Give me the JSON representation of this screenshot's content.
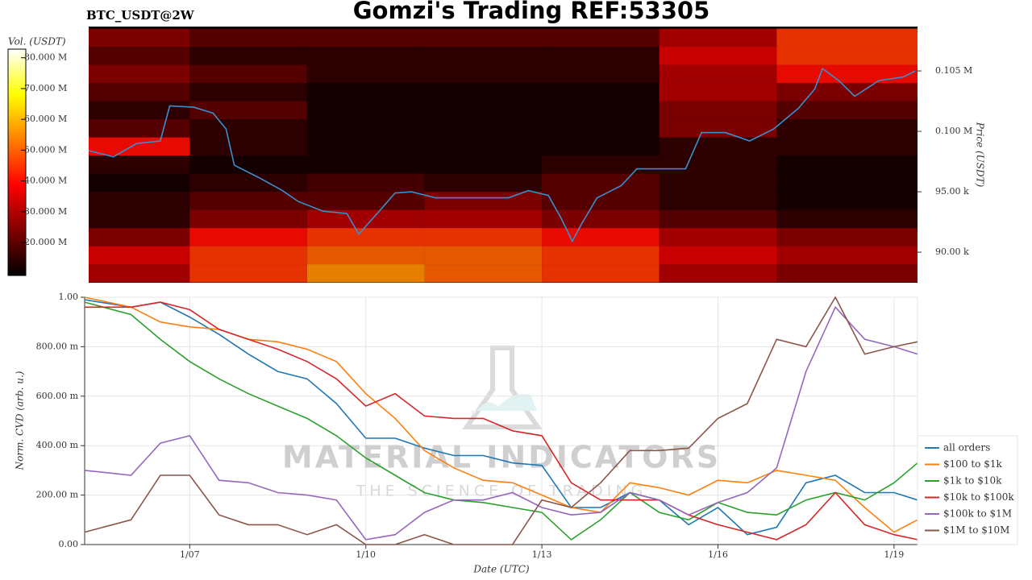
{
  "chart_data": [
    {
      "type": "heatmap",
      "title": "Gomzi's Trading REF:53305",
      "subtitle": "BTC_USDT@2W",
      "ylabel": "Price (USDT)",
      "clabel": "Vol. (USDT)",
      "xlim": [
        5.28,
        19.4
      ],
      "ylim": [
        87470,
        108670
      ],
      "yticks": [
        {
          "value": 90000,
          "label": "90.00 k"
        },
        {
          "value": 95000,
          "label": "95.00 k"
        },
        {
          "value": 100000,
          "label": "0.100 M"
        },
        {
          "value": 105000,
          "label": "0.105 M"
        }
      ],
      "clim": [
        9300000,
        82800000
      ],
      "cticks": [
        {
          "value": 20000000,
          "label": "20.000 M"
        },
        {
          "value": 30000000,
          "label": "30.000 M"
        },
        {
          "value": 40000000,
          "label": "40.000 M"
        },
        {
          "value": 50000000,
          "label": "50.000 M"
        },
        {
          "value": 60000000,
          "label": "60.000 M"
        },
        {
          "value": 70000000,
          "label": "70.000 M"
        },
        {
          "value": 80000000,
          "label": "80.000 M"
        }
      ],
      "xbins": [
        5.28,
        7,
        9,
        11,
        13,
        15,
        17,
        19.4
      ],
      "ybins": [
        87500,
        89000,
        90500,
        92000,
        93500,
        95000,
        96500,
        98000,
        99500,
        101000,
        102500,
        104000,
        105500,
        107000,
        108500
      ],
      "z": [
        [
          30000000,
          45000000,
          55000000,
          50000000,
          45000000,
          30000000,
          25000000
        ],
        [
          35000000,
          45000000,
          50000000,
          50000000,
          45000000,
          35000000,
          30000000
        ],
        [
          25000000,
          40000000,
          45000000,
          45000000,
          40000000,
          30000000,
          25000000
        ],
        [
          15000000,
          25000000,
          30000000,
          30000000,
          25000000,
          20000000,
          15000000
        ],
        [
          15000000,
          20000000,
          20000000,
          25000000,
          20000000,
          15000000,
          12000000
        ],
        [
          12000000,
          15000000,
          18000000,
          15000000,
          20000000,
          15000000,
          12000000
        ],
        [
          15000000,
          12000000,
          12000000,
          12000000,
          15000000,
          15000000,
          12000000
        ],
        [
          40000000,
          15000000,
          12000000,
          12000000,
          12000000,
          15000000,
          15000000
        ],
        [
          20000000,
          15000000,
          12000000,
          12000000,
          12000000,
          25000000,
          15000000
        ],
        [
          15000000,
          20000000,
          12000000,
          12000000,
          12000000,
          25000000,
          20000000
        ],
        [
          20000000,
          15000000,
          12000000,
          12000000,
          12000000,
          30000000,
          25000000
        ],
        [
          25000000,
          20000000,
          15000000,
          15000000,
          15000000,
          30000000,
          40000000
        ],
        [
          20000000,
          15000000,
          15000000,
          15000000,
          15000000,
          35000000,
          45000000
        ],
        [
          25000000,
          20000000,
          20000000,
          20000000,
          20000000,
          30000000,
          45000000
        ]
      ],
      "series": [
        {
          "color": "#3a8fd0",
          "x": [
            5.28,
            5.7,
            6.1,
            6.5,
            6.66,
            7.07,
            7.4,
            7.62,
            7.76,
            8.17,
            8.58,
            8.85,
            9.27,
            9.68,
            9.88,
            10.23,
            10.5,
            10.78,
            11.19,
            11.6,
            12.01,
            12.43,
            12.77,
            13.11,
            13.32,
            13.52,
            13.66,
            13.94,
            14.35,
            14.62,
            15.04,
            15.45,
            15.72,
            16.13,
            16.54,
            16.95,
            17.37,
            17.65,
            17.78,
            18.06,
            18.33,
            18.74,
            19.16,
            19.36
          ],
          "values": [
            98400,
            97900,
            99000,
            99200,
            102100,
            102000,
            101500,
            100200,
            97200,
            96200,
            95100,
            94200,
            93400,
            93200,
            91500,
            93400,
            94900,
            95000,
            94500,
            94500,
            94500,
            94500,
            95100,
            94700,
            92900,
            90900,
            92200,
            94500,
            95500,
            96900,
            96900,
            96900,
            99900,
            99900,
            99200,
            100200,
            101900,
            103500,
            105200,
            104200,
            102900,
            104200,
            104500,
            105000
          ]
        }
      ]
    },
    {
      "type": "line",
      "xlabel": "Date (UTC)",
      "ylabel": "Norm. CVD (arb. u.)",
      "watermark": [
        "MATERIAL INDICATORS",
        "THE SCIENCE OF TRADING"
      ],
      "grid": true,
      "legend": "lower right",
      "xlim": [
        5.21,
        19.4
      ],
      "ylim": [
        0,
        1
      ],
      "xticks": [
        {
          "value": 7,
          "label": "1/07"
        },
        {
          "value": 10,
          "label": "1/10"
        },
        {
          "value": 13,
          "label": "1/13"
        },
        {
          "value": 16,
          "label": "1/16"
        },
        {
          "value": 19,
          "label": "1/19"
        }
      ],
      "yticks": [
        {
          "value": 0,
          "label": "0.00"
        },
        {
          "value": 0.2,
          "label": "200.00 m"
        },
        {
          "value": 0.4,
          "label": "400.00 m"
        },
        {
          "value": 0.6,
          "label": "600.00 m"
        },
        {
          "value": 0.8,
          "label": "800.00 m"
        },
        {
          "value": 1,
          "label": "1.00"
        }
      ],
      "x": [
        5.21,
        6,
        6.5,
        7,
        7.5,
        8,
        8.5,
        9,
        9.5,
        10,
        10.5,
        11,
        11.5,
        12,
        12.5,
        13,
        13.5,
        14,
        14.5,
        15,
        15.5,
        16,
        16.5,
        17,
        17.5,
        18,
        18.5,
        19,
        19.4
      ],
      "series": [
        {
          "name": "all orders",
          "color": "#1f77b4",
          "values": [
            0.99,
            0.96,
            0.98,
            0.92,
            0.85,
            0.77,
            0.7,
            0.67,
            0.57,
            0.43,
            0.43,
            0.39,
            0.36,
            0.36,
            0.33,
            0.32,
            0.15,
            0.15,
            0.21,
            0.18,
            0.08,
            0.15,
            0.04,
            0.07,
            0.25,
            0.28,
            0.21,
            0.21,
            0.18
          ]
        },
        {
          "name": "$100 to $1k",
          "color": "#ff7f0e",
          "values": [
            1.0,
            0.96,
            0.9,
            0.88,
            0.87,
            0.83,
            0.82,
            0.79,
            0.74,
            0.61,
            0.51,
            0.38,
            0.31,
            0.26,
            0.25,
            0.2,
            0.15,
            0.13,
            0.25,
            0.23,
            0.2,
            0.26,
            0.25,
            0.3,
            0.28,
            0.26,
            0.15,
            0.05,
            0.1
          ]
        },
        {
          "name": "$1k to $10k",
          "color": "#2ca02c",
          "values": [
            0.98,
            0.93,
            0.83,
            0.74,
            0.67,
            0.61,
            0.56,
            0.51,
            0.44,
            0.35,
            0.28,
            0.21,
            0.18,
            0.17,
            0.15,
            0.13,
            0.02,
            0.1,
            0.21,
            0.13,
            0.1,
            0.17,
            0.13,
            0.12,
            0.18,
            0.21,
            0.18,
            0.25,
            0.33
          ]
        },
        {
          "name": "$10k to $100k",
          "color": "#d62728",
          "values": [
            0.96,
            0.96,
            0.98,
            0.95,
            0.87,
            0.83,
            0.79,
            0.74,
            0.67,
            0.56,
            0.61,
            0.52,
            0.51,
            0.51,
            0.46,
            0.44,
            0.25,
            0.18,
            0.18,
            0.18,
            0.12,
            0.08,
            0.05,
            0.02,
            0.08,
            0.21,
            0.08,
            0.04,
            0.02
          ]
        },
        {
          "name": "$100k to $1M",
          "color": "#9467bd",
          "values": [
            0.3,
            0.28,
            0.41,
            0.44,
            0.26,
            0.25,
            0.21,
            0.2,
            0.18,
            0.02,
            0.04,
            0.13,
            0.18,
            0.18,
            0.21,
            0.15,
            0.12,
            0.13,
            0.21,
            0.18,
            0.12,
            0.17,
            0.21,
            0.31,
            0.7,
            0.96,
            0.83,
            0.8,
            0.77
          ]
        },
        {
          "name": "$1M to $10M",
          "color": "#8c564b",
          "values": [
            0.05,
            0.1,
            0.28,
            0.28,
            0.12,
            0.08,
            0.08,
            0.04,
            0.08,
            0,
            0,
            0.04,
            0,
            0,
            0,
            0.18,
            0.15,
            0.25,
            0.38,
            0.38,
            0.39,
            0.51,
            0.57,
            0.83,
            0.8,
            1.0,
            0.77,
            0.8,
            0.82
          ]
        }
      ]
    }
  ]
}
